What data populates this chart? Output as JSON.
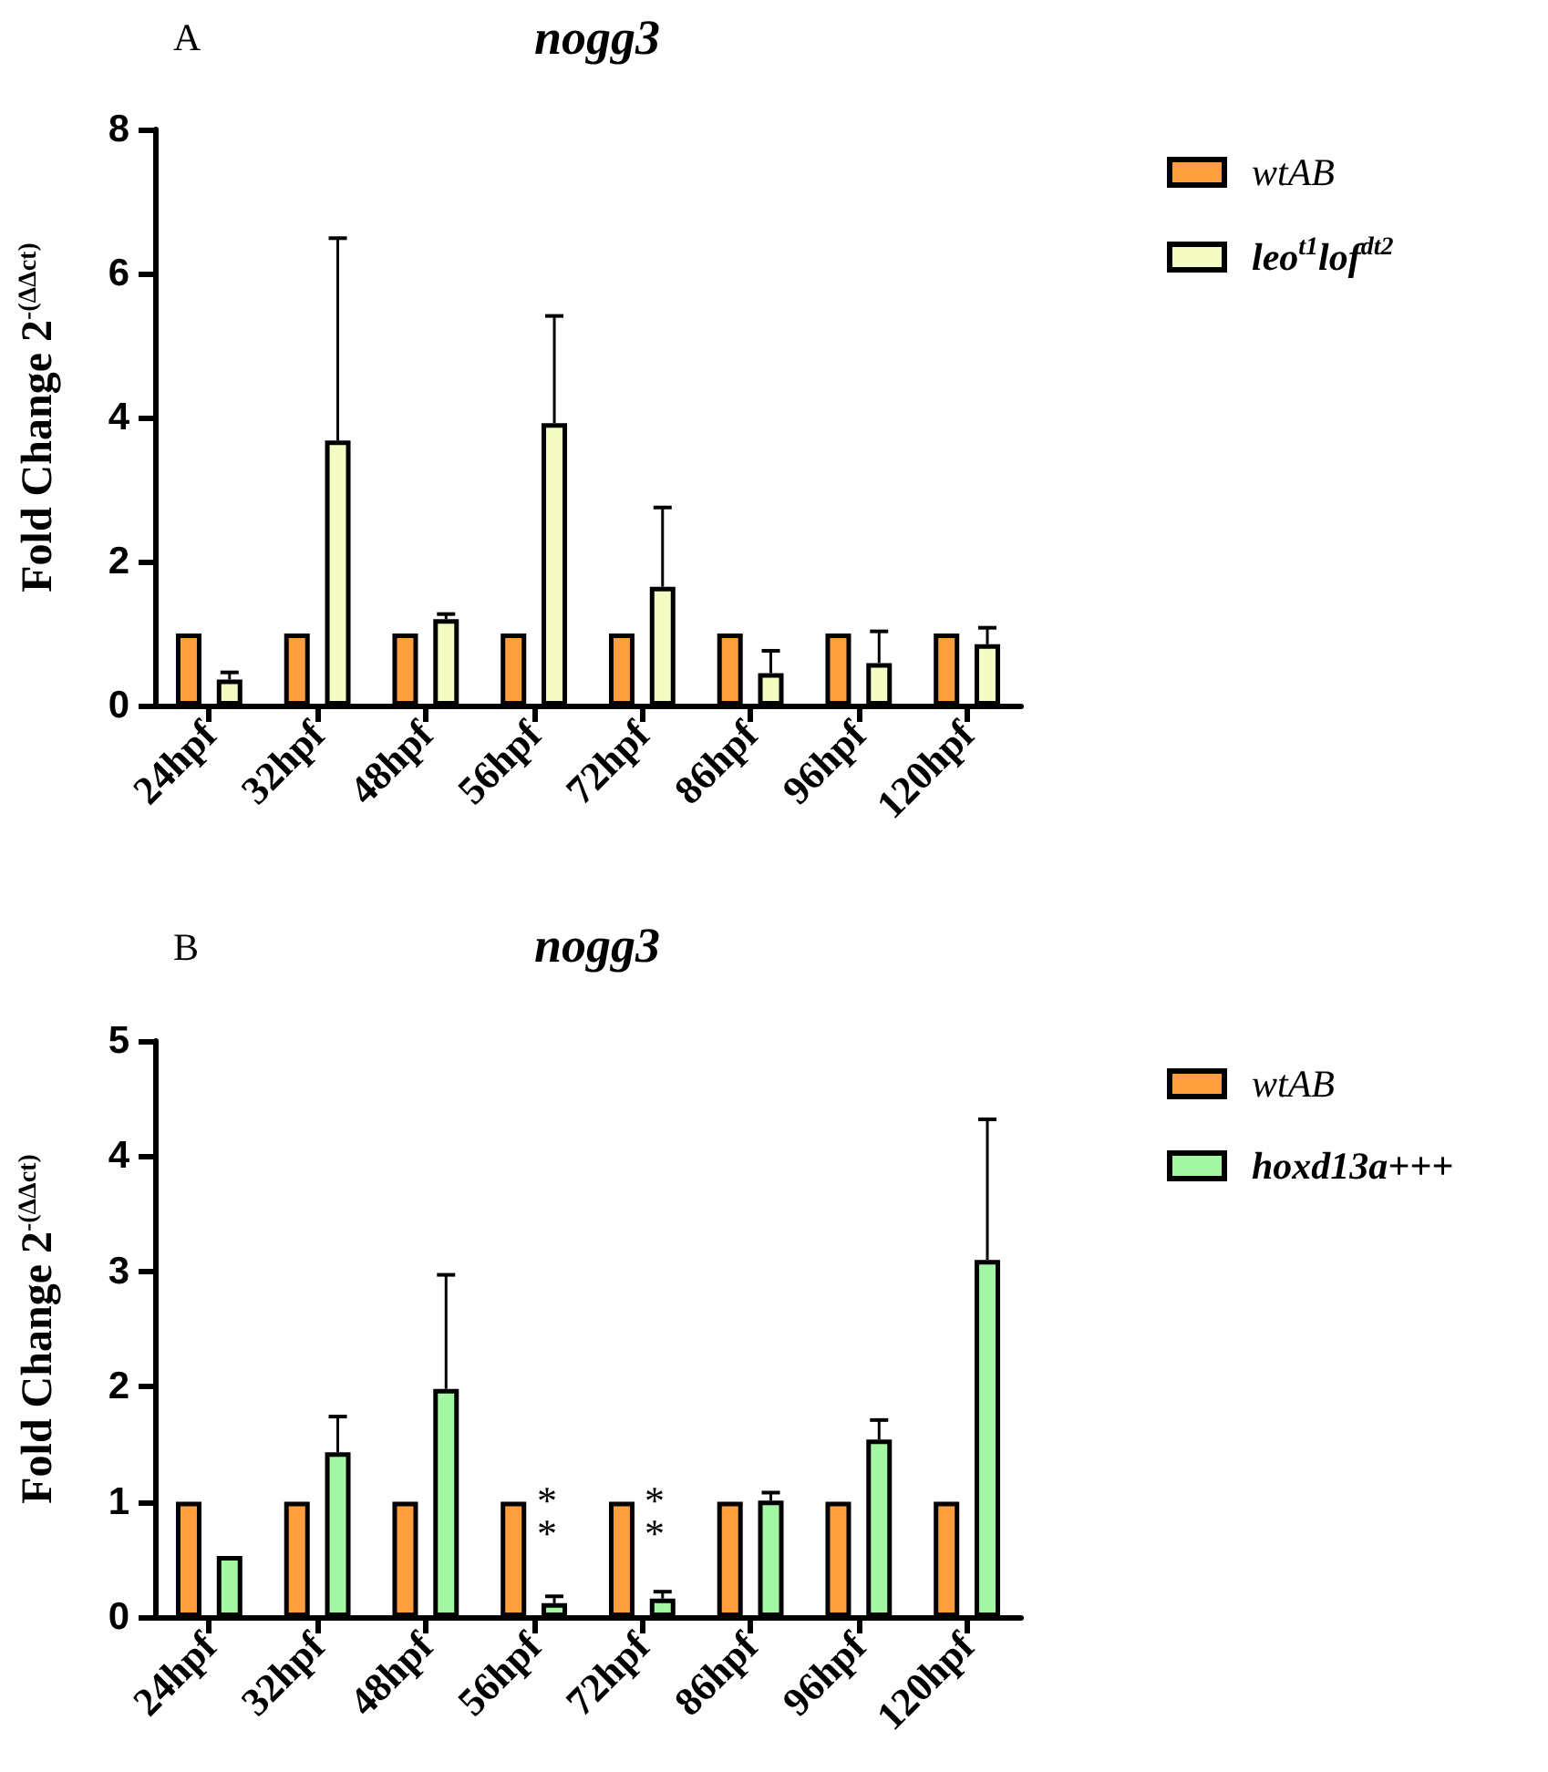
{
  "chart_data": [
    {
      "type": "bar",
      "title": "nogg3",
      "ylabel": "Fold Change 2$^{-(ΔΔct)}$",
      "annotations": [
        "A"
      ],
      "categories": [
        "24hpf",
        "32hpf",
        "48hpf",
        "56hpf",
        "72hpf",
        "86hpf",
        "96hpf",
        "120hpf"
      ],
      "series": [
        {
          "name": "wtAB",
          "color": "#ff9e3d",
          "values": [
            1,
            1,
            1,
            1,
            1,
            1,
            1,
            1
          ]
        },
        {
          "name": "leo$^{t1}$lof$^{dt2}$",
          "color": "#f4fcc4",
          "values": [
            0.36,
            3.68,
            1.2,
            3.92,
            1.65,
            0.45,
            0.59,
            0.85
          ],
          "errors": [
            [
              0.36,
              0.46
            ],
            [
              3.68,
              6.49
            ],
            [
              1.2,
              1.27
            ],
            [
              3.92,
              5.41
            ],
            [
              1.65,
              2.75
            ],
            [
              0.45,
              0.76
            ],
            [
              0.59,
              1.03
            ],
            [
              0.85,
              1.08
            ]
          ]
        }
      ],
      "ylim": [
        0,
        8
      ],
      "yticks": [
        0,
        2,
        4,
        6,
        8
      ],
      "legend": "right"
    },
    {
      "type": "bar",
      "title": "nogg3",
      "ylabel": "Fold Change 2$^{-(ΔΔct)}$",
      "annotations": [
        "B",
        "**",
        "**"
      ],
      "categories": [
        "24hpf",
        "32hpf",
        "48hpf",
        "56hpf",
        "72hpf",
        "86hpf",
        "96hpf",
        "120hpf"
      ],
      "series": [
        {
          "name": "wtAB",
          "color": "#ff9e3d",
          "values": [
            1,
            1,
            1,
            1,
            1,
            1,
            1,
            1
          ]
        },
        {
          "name": "hoxd13a+++",
          "color": "#a3f7a3",
          "values": [
            0.53,
            1.43,
            1.98,
            0.12,
            0.16,
            1.01,
            1.54,
            3.1
          ],
          "errors": [
            null,
            [
              1.43,
              1.74
            ],
            [
              1.98,
              2.97
            ],
            [
              0.12,
              0.18
            ],
            [
              0.16,
              0.22
            ],
            [
              1.01,
              1.08
            ],
            [
              1.54,
              1.71
            ],
            [
              3.1,
              4.32
            ]
          ]
        }
      ],
      "ylim": [
        0,
        5
      ],
      "yticks": [
        0,
        1,
        2,
        3,
        4,
        5
      ],
      "legend": "right"
    }
  ]
}
